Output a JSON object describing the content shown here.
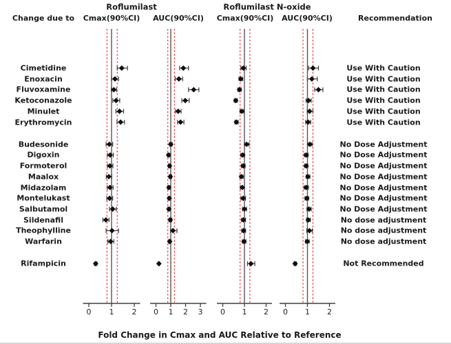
{
  "chart_data": {
    "type": "scatter",
    "subtype": "forest-plot",
    "left_header": "Change due to",
    "right_header": "Recommendation",
    "group_headers": [
      "Roflumilast",
      "Roflumilast N-oxide"
    ],
    "xlabel": "Fold Change in Cmax and AUC Relative to Reference",
    "reference_lines": {
      "solid": 1.0,
      "dashed": [
        0.8,
        1.25
      ]
    },
    "colors": {
      "dashed_ref": "#e8262d",
      "solid_ref": "#555555",
      "marker": "#0d0d0d",
      "error_bar": "#3d3d3d",
      "axis": "#3f3f3f",
      "tick_text": "#222222"
    },
    "panels": [
      {
        "key": "rof_cmax",
        "metric": "Cmax(90%CI)",
        "ticks": [
          0,
          1,
          2
        ],
        "xlim": [
          -0.25,
          2.25
        ]
      },
      {
        "key": "rof_auc",
        "metric": "AUC(90%CI)",
        "ticks": [
          0,
          1,
          2,
          3
        ],
        "xlim": [
          -0.35,
          3.35
        ]
      },
      {
        "key": "nox_cmax",
        "metric": "Cmax(90%CI)",
        "ticks": [
          0,
          1,
          2
        ],
        "xlim": [
          -0.27,
          2.27
        ]
      },
      {
        "key": "nox_auc",
        "metric": "AUC(90%CI)",
        "ticks": [
          0,
          1,
          2
        ],
        "xlim": [
          -0.27,
          2.27
        ]
      }
    ],
    "rows": [
      {
        "drug": "Cimetidine",
        "group": 1,
        "recommendation": "Use With Caution",
        "rof_cmax": [
          1.45,
          1.25,
          1.7
        ],
        "rof_auc": [
          1.85,
          1.6,
          2.2
        ],
        "nox_cmax": [
          0.95,
          0.84,
          1.08
        ],
        "nox_auc": [
          1.25,
          1.05,
          1.5
        ]
      },
      {
        "drug": "Enoxacin",
        "group": 1,
        "recommendation": "Use With Caution",
        "rof_cmax": [
          1.15,
          1.0,
          1.31
        ],
        "rof_auc": [
          1.55,
          1.3,
          1.8
        ],
        "nox_cmax": [
          0.83,
          0.75,
          0.92
        ],
        "nox_auc": [
          1.2,
          1.0,
          1.45
        ]
      },
      {
        "drug": "Fluvoxamine",
        "group": 1,
        "recommendation": "Use With Caution",
        "rof_cmax": [
          1.1,
          0.99,
          1.22
        ],
        "rof_auc": [
          2.55,
          2.2,
          2.9
        ],
        "nox_cmax": [
          0.77,
          0.7,
          0.85
        ],
        "nox_auc": [
          1.5,
          1.33,
          1.7
        ]
      },
      {
        "drug": "Ketoconazole",
        "group": 1,
        "recommendation": "Use With Caution",
        "rof_cmax": [
          1.2,
          1.06,
          1.36
        ],
        "rof_auc": [
          1.98,
          1.75,
          2.24
        ],
        "nox_cmax": [
          0.6,
          0.53,
          0.67
        ],
        "nox_auc": [
          1.05,
          0.94,
          1.17
        ]
      },
      {
        "drug": "Minulet",
        "group": 1,
        "recommendation": "Use With Caution",
        "rof_cmax": [
          1.35,
          1.19,
          1.53
        ],
        "rof_auc": [
          1.5,
          1.32,
          1.7
        ],
        "nox_cmax": [
          0.88,
          0.8,
          0.97
        ],
        "nox_auc": [
          1.1,
          0.99,
          1.25
        ]
      },
      {
        "drug": "Erythromycin",
        "group": 1,
        "recommendation": "Use With Caution",
        "rof_cmax": [
          1.4,
          1.24,
          1.57
        ],
        "rof_auc": [
          1.66,
          1.46,
          1.89
        ],
        "nox_cmax": [
          0.63,
          0.56,
          0.71
        ],
        "nox_auc": [
          1.03,
          0.92,
          1.15
        ]
      },
      {
        "drug": "Budesonide",
        "group": 2,
        "recommendation": "No Dose Adjustment",
        "rof_cmax": [
          0.9,
          0.76,
          1.05
        ],
        "rof_auc": [
          1.0,
          0.91,
          1.1
        ],
        "nox_cmax": [
          1.1,
          1.0,
          1.21
        ],
        "nox_auc": [
          1.11,
          1.02,
          1.21
        ]
      },
      {
        "drug": "Digoxin",
        "group": 2,
        "recommendation": "No Dose Adjustment",
        "rof_cmax": [
          0.94,
          0.82,
          1.08
        ],
        "rof_auc": [
          0.85,
          0.77,
          0.94
        ],
        "nox_cmax": [
          0.92,
          0.84,
          1.01
        ],
        "nox_auc": [
          0.94,
          0.86,
          1.03
        ]
      },
      {
        "drug": "Formoterol",
        "group": 2,
        "recommendation": "No Dose Adjustment",
        "rof_cmax": [
          0.93,
          0.82,
          1.06
        ],
        "rof_auc": [
          0.92,
          0.84,
          1.01
        ],
        "nox_cmax": [
          0.94,
          0.86,
          1.03
        ],
        "nox_auc": [
          0.94,
          0.87,
          1.02
        ]
      },
      {
        "drug": "Maalox",
        "group": 2,
        "recommendation": "No Dose Adjustment",
        "rof_cmax": [
          0.88,
          0.77,
          1.01
        ],
        "rof_auc": [
          0.97,
          0.89,
          1.06
        ],
        "nox_cmax": [
          0.86,
          0.79,
          0.94
        ],
        "nox_auc": [
          1.02,
          0.94,
          1.11
        ]
      },
      {
        "drug": "Midazolam",
        "group": 2,
        "recommendation": "No Dose Adjustment",
        "rof_cmax": [
          0.93,
          0.81,
          1.07
        ],
        "rof_auc": [
          0.87,
          0.79,
          0.96
        ],
        "nox_cmax": [
          0.9,
          0.81,
          1.0
        ],
        "nox_auc": [
          0.94,
          0.85,
          1.04
        ]
      },
      {
        "drug": "Montelukast",
        "group": 2,
        "recommendation": "No Dose Adjustment",
        "rof_cmax": [
          0.91,
          0.79,
          1.05
        ],
        "rof_auc": [
          0.9,
          0.82,
          0.99
        ],
        "nox_cmax": [
          0.94,
          0.84,
          1.05
        ],
        "nox_auc": [
          0.97,
          0.89,
          1.06
        ]
      },
      {
        "drug": "Salbutamol",
        "group": 2,
        "recommendation": "No Dose Adjustment",
        "rof_cmax": [
          1.05,
          0.91,
          1.21
        ],
        "rof_auc": [
          0.87,
          0.79,
          0.95
        ],
        "nox_cmax": [
          1.0,
          0.91,
          1.1
        ],
        "nox_auc": [
          1.07,
          0.98,
          1.17
        ]
      },
      {
        "drug": "Sildenafil",
        "group": 2,
        "recommendation": "No dose adjustment",
        "rof_cmax": [
          0.75,
          0.62,
          0.89
        ],
        "rof_auc": [
          0.97,
          0.88,
          1.07
        ],
        "nox_cmax": [
          0.95,
          0.87,
          1.05
        ],
        "nox_auc": [
          1.04,
          0.96,
          1.13
        ]
      },
      {
        "drug": "Theophylline",
        "group": 2,
        "recommendation": "No dose adjustment",
        "rof_cmax": [
          1.02,
          0.76,
          1.31
        ],
        "rof_auc": [
          1.15,
          0.98,
          1.42
        ],
        "nox_cmax": [
          0.96,
          0.88,
          1.05
        ],
        "nox_auc": [
          1.09,
          0.97,
          1.22
        ]
      },
      {
        "drug": "Warfarin",
        "group": 2,
        "recommendation": "No dose adjustment",
        "rof_cmax": [
          0.96,
          0.84,
          1.1
        ],
        "rof_auc": [
          0.93,
          0.85,
          1.02
        ],
        "nox_cmax": [
          0.98,
          0.9,
          1.07
        ],
        "nox_auc": [
          0.99,
          0.91,
          1.08
        ]
      },
      {
        "drug": "Rifampicin",
        "group": 3,
        "recommendation": "Not Recommended",
        "rof_cmax": [
          0.3,
          0.25,
          0.36
        ],
        "rof_auc": [
          0.2,
          0.17,
          0.24
        ],
        "nox_cmax": [
          1.3,
          1.14,
          1.48
        ],
        "nox_auc": [
          0.44,
          0.39,
          0.5
        ]
      }
    ]
  }
}
